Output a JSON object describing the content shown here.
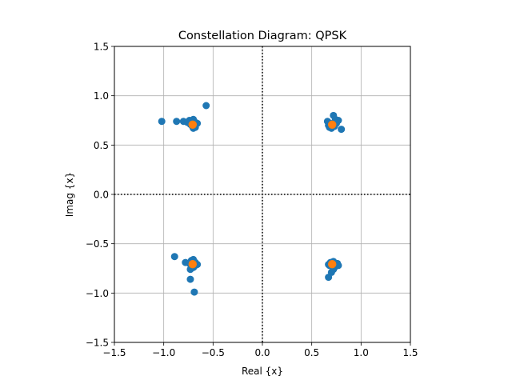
{
  "chart_data": {
    "type": "scatter",
    "title": "Constellation Diagram: QPSK",
    "xlabel": "Real {x}",
    "ylabel": "Imag {x}",
    "xlim": [
      -1.5,
      1.5
    ],
    "ylim": [
      -1.5,
      1.5
    ],
    "xticks": [
      -1.5,
      -1.0,
      -0.5,
      0.0,
      0.5,
      1.0,
      1.5
    ],
    "xtick_labels": [
      "−1.5",
      "−1.0",
      "−0.5",
      "0.0",
      "0.5",
      "1.0",
      "1.5"
    ],
    "yticks": [
      -1.5,
      -1.0,
      -0.5,
      0.0,
      0.5,
      1.0,
      1.5
    ],
    "ytick_labels": [
      "−1.5",
      "−1.0",
      "−0.5",
      "0.0",
      "0.5",
      "1.0",
      "1.5"
    ],
    "grid": true,
    "axis_lines": "dotted lines at x=0 and y=0",
    "series": [
      {
        "color": "#1f77b4",
        "points": [
          [
            -0.57,
            0.9
          ],
          [
            -1.02,
            0.74
          ],
          [
            -0.87,
            0.74
          ],
          [
            -0.8,
            0.74
          ],
          [
            -0.76,
            0.73
          ],
          [
            -0.74,
            0.75
          ],
          [
            -0.72,
            0.74
          ],
          [
            -0.7,
            0.76
          ],
          [
            -0.68,
            0.73
          ],
          [
            -0.66,
            0.72
          ],
          [
            -0.69,
            0.7
          ],
          [
            -0.71,
            0.69
          ],
          [
            -0.73,
            0.71
          ],
          [
            -0.7,
            0.67
          ],
          [
            -0.68,
            0.68
          ],
          [
            0.72,
            0.8
          ],
          [
            0.74,
            0.76
          ],
          [
            0.77,
            0.75
          ],
          [
            0.66,
            0.74
          ],
          [
            0.69,
            0.72
          ],
          [
            0.71,
            0.7
          ],
          [
            0.68,
            0.68
          ],
          [
            0.7,
            0.67
          ],
          [
            0.73,
            0.69
          ],
          [
            0.75,
            0.72
          ],
          [
            0.8,
            0.66
          ],
          [
            0.67,
            0.7
          ],
          [
            -0.89,
            -0.63
          ],
          [
            -0.78,
            -0.69
          ],
          [
            -0.72,
            -0.67
          ],
          [
            -0.7,
            -0.66
          ],
          [
            -0.68,
            -0.69
          ],
          [
            -0.66,
            -0.71
          ],
          [
            -0.69,
            -0.73
          ],
          [
            -0.72,
            -0.72
          ],
          [
            -0.74,
            -0.7
          ],
          [
            -0.73,
            -0.76
          ],
          [
            -0.7,
            -0.74
          ],
          [
            -0.73,
            -0.86
          ],
          [
            -0.69,
            -0.99
          ],
          [
            0.67,
            -0.84
          ],
          [
            0.7,
            -0.79
          ],
          [
            0.72,
            -0.76
          ],
          [
            0.74,
            -0.73
          ],
          [
            0.76,
            -0.7
          ],
          [
            0.77,
            -0.72
          ],
          [
            0.72,
            -0.68
          ],
          [
            0.69,
            -0.69
          ],
          [
            0.67,
            -0.71
          ],
          [
            0.7,
            -0.7
          ],
          [
            0.73,
            -0.74
          ],
          [
            0.68,
            -0.72
          ]
        ]
      },
      {
        "color": "#ff7f0e",
        "points": [
          [
            -0.707,
            0.707
          ],
          [
            0.707,
            0.707
          ],
          [
            -0.707,
            -0.707
          ],
          [
            0.707,
            -0.707
          ]
        ]
      }
    ]
  }
}
